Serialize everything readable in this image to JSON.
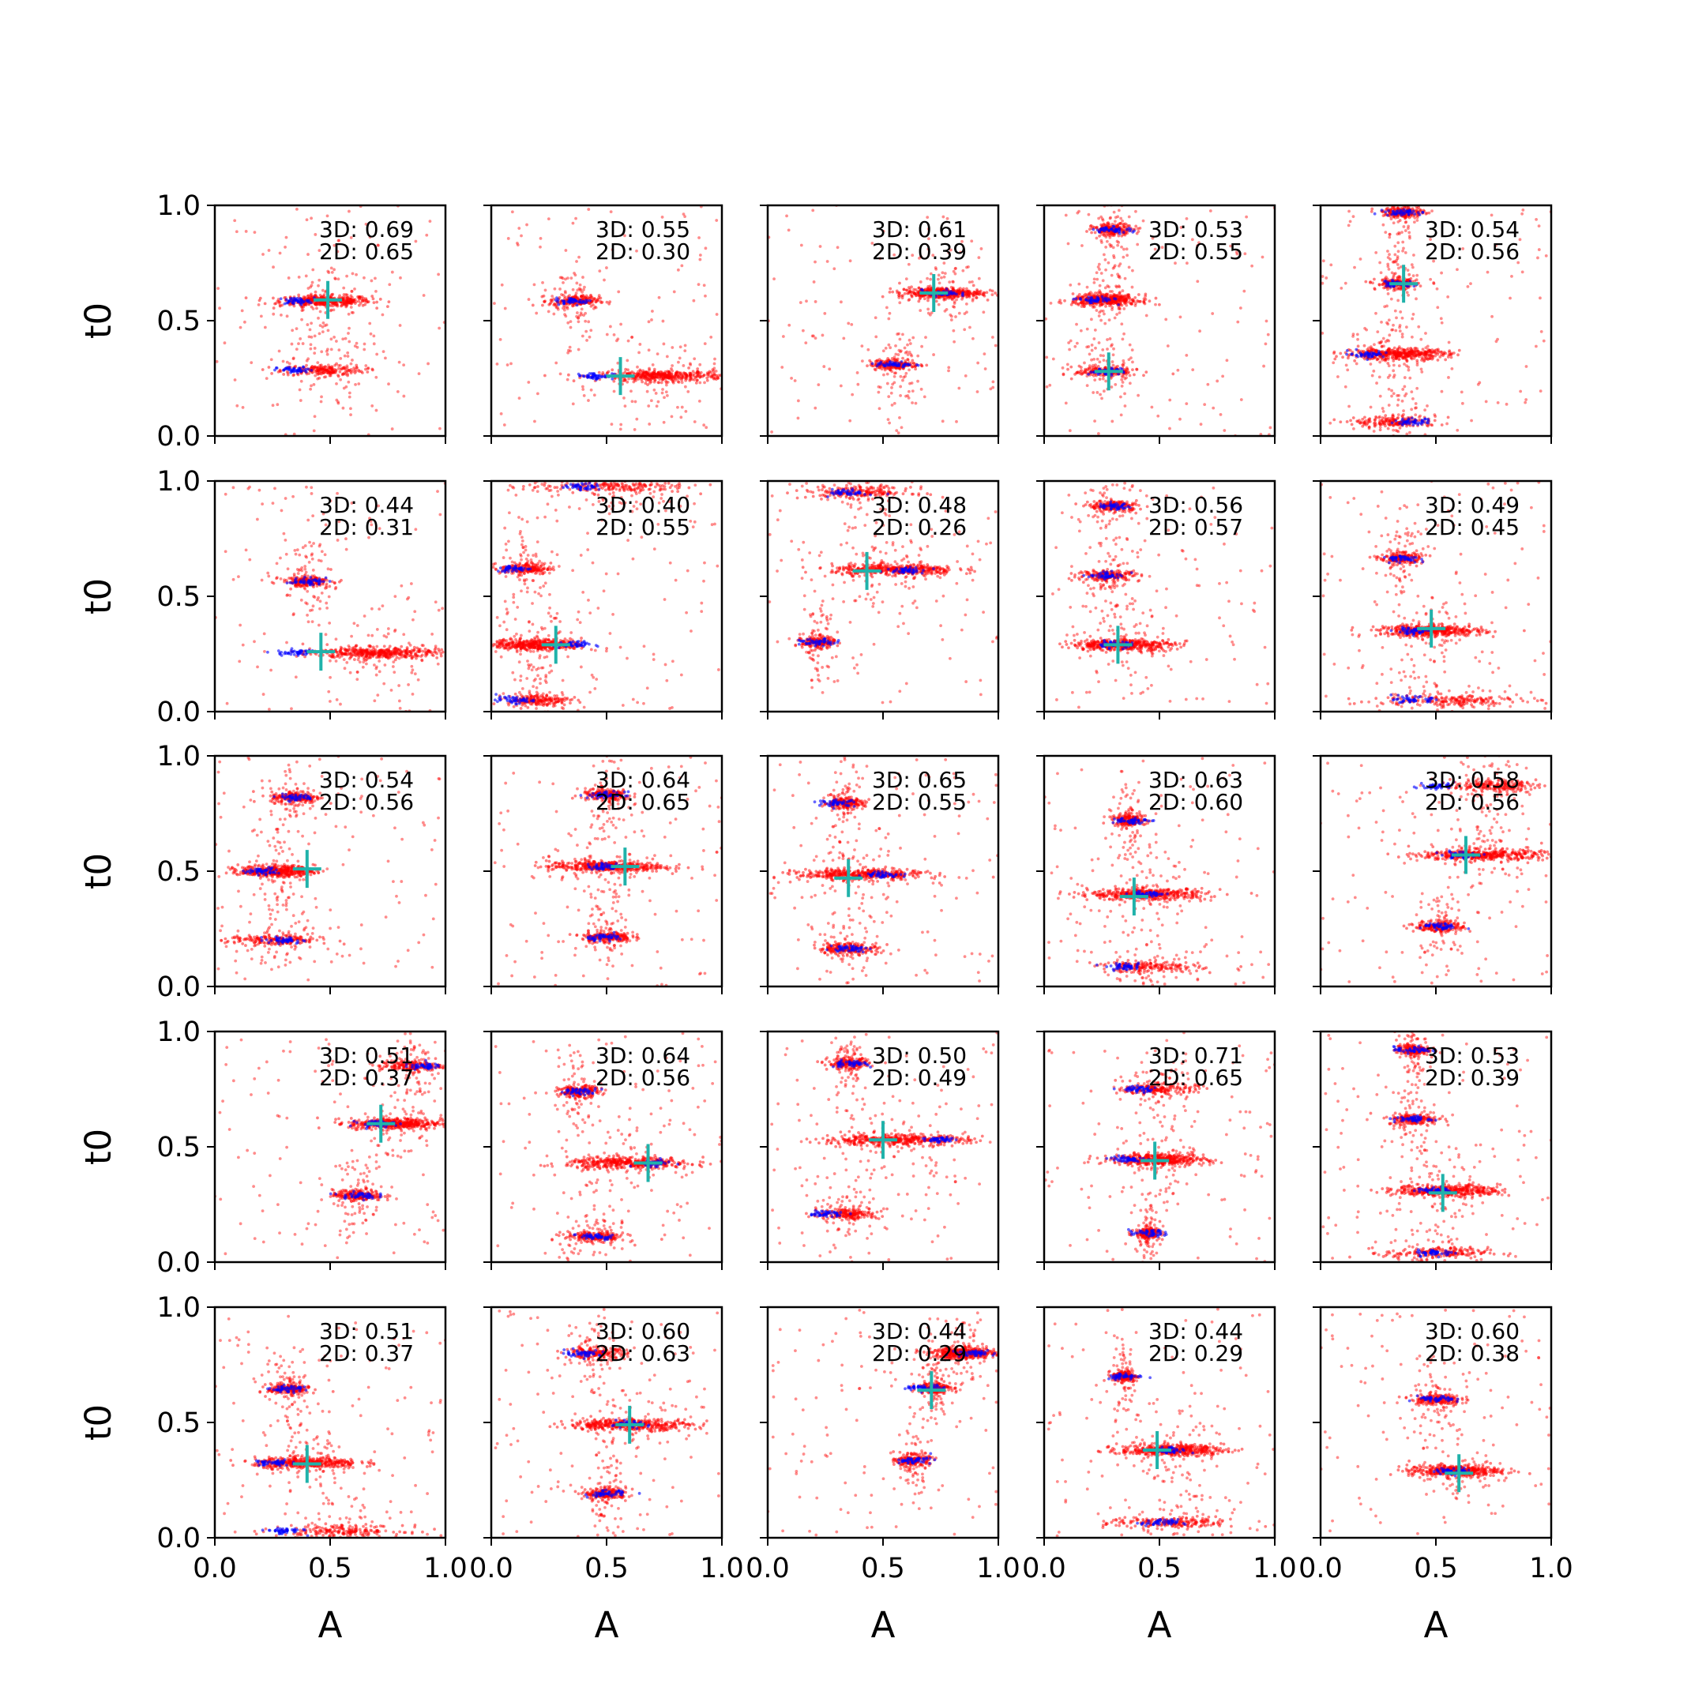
{
  "chart_data": {
    "type": "scatter",
    "layout": {
      "rows": 5,
      "cols": 5
    },
    "xlabel": "A",
    "ylabel": "t0",
    "xlim": [
      0,
      1
    ],
    "ylim": [
      0,
      1
    ],
    "xticks": [
      "0.0",
      "0.5",
      "1.0"
    ],
    "yticks": [
      "0.0",
      "0.5",
      "1.0"
    ],
    "grid": false,
    "colors": {
      "bulk_samples": "#ff0000",
      "mode_samples": "#0000ff",
      "true_marker": "#20b2aa",
      "axes": "#000000"
    },
    "panels": [
      {
        "score_3d": "3D: 0.69",
        "score_2d": "2D: 0.65",
        "truth": [
          0.49,
          0.59
        ],
        "bands": [
          {
            "x": 0.48,
            "y": 0.585,
            "w": 0.22,
            "mode_x": 0.35
          },
          {
            "x": 0.47,
            "y": 0.285,
            "w": 0.2,
            "mode_x": 0.35
          }
        ]
      },
      {
        "score_3d": "3D: 0.55",
        "score_2d": "2D: 0.30",
        "truth": [
          0.56,
          0.26
        ],
        "bands": [
          {
            "x": 0.74,
            "y": 0.26,
            "w": 0.3,
            "mode_x": 0.45
          },
          {
            "x": 0.36,
            "y": 0.585,
            "w": 0.12,
            "mode_x": 0.36
          }
        ]
      },
      {
        "score_3d": "3D: 0.61",
        "score_2d": "2D: 0.39",
        "truth": [
          0.72,
          0.62
        ],
        "bands": [
          {
            "x": 0.75,
            "y": 0.62,
            "w": 0.2,
            "mode_x": 0.75
          },
          {
            "x": 0.55,
            "y": 0.31,
            "w": 0.12,
            "mode_x": 0.55
          }
        ]
      },
      {
        "score_3d": "3D: 0.53",
        "score_2d": "2D: 0.55",
        "truth": [
          0.28,
          0.28
        ],
        "bands": [
          {
            "x": 0.27,
            "y": 0.59,
            "w": 0.16,
            "mode_x": 0.22
          },
          {
            "x": 0.27,
            "y": 0.28,
            "w": 0.15,
            "mode_x": 0.27
          },
          {
            "x": 0.3,
            "y": 0.895,
            "w": 0.1,
            "mode_x": 0.3
          }
        ]
      },
      {
        "score_3d": "3D: 0.54",
        "score_2d": "2D: 0.56",
        "truth": [
          0.36,
          0.66
        ],
        "bands": [
          {
            "x": 0.33,
            "y": 0.355,
            "w": 0.25,
            "mode_x": 0.2
          },
          {
            "x": 0.33,
            "y": 0.06,
            "w": 0.2,
            "mode_x": 0.4
          },
          {
            "x": 0.33,
            "y": 0.66,
            "w": 0.1,
            "mode_x": 0.33
          },
          {
            "x": 0.36,
            "y": 0.97,
            "w": 0.1,
            "mode_x": 0.36
          }
        ]
      },
      {
        "score_3d": "3D: 0.44",
        "score_2d": "2D: 0.31",
        "truth": [
          0.46,
          0.26
        ],
        "bands": [
          {
            "x": 0.7,
            "y": 0.255,
            "w": 0.3,
            "mode_x": 0.35
          },
          {
            "x": 0.4,
            "y": 0.565,
            "w": 0.12,
            "mode_x": 0.4
          }
        ]
      },
      {
        "score_3d": "3D: 0.40",
        "score_2d": "2D: 0.55",
        "truth": [
          0.28,
          0.29
        ],
        "bands": [
          {
            "x": 0.2,
            "y": 0.29,
            "w": 0.22,
            "mode_x": 0.35
          },
          {
            "x": 0.15,
            "y": 0.62,
            "w": 0.12,
            "mode_x": 0.1
          },
          {
            "x": 0.2,
            "y": 0.05,
            "w": 0.15,
            "mode_x": 0.1
          },
          {
            "x": 0.5,
            "y": 0.975,
            "w": 0.4,
            "mode_x": 0.4
          }
        ]
      },
      {
        "score_3d": "3D: 0.48",
        "score_2d": "2D: 0.26",
        "truth": [
          0.43,
          0.61
        ],
        "bands": [
          {
            "x": 0.55,
            "y": 0.615,
            "w": 0.3,
            "mode_x": 0.6
          },
          {
            "x": 0.4,
            "y": 0.95,
            "w": 0.25,
            "mode_x": 0.35
          },
          {
            "x": 0.22,
            "y": 0.3,
            "w": 0.08,
            "mode_x": 0.22
          }
        ]
      },
      {
        "score_3d": "3D: 0.56",
        "score_2d": "2D: 0.57",
        "truth": [
          0.32,
          0.29
        ],
        "bands": [
          {
            "x": 0.34,
            "y": 0.29,
            "w": 0.25,
            "mode_x": 0.3
          },
          {
            "x": 0.28,
            "y": 0.59,
            "w": 0.15,
            "mode_x": 0.28
          },
          {
            "x": 0.3,
            "y": 0.89,
            "w": 0.12,
            "mode_x": 0.3
          }
        ]
      },
      {
        "score_3d": "3D: 0.49",
        "score_2d": "2D: 0.45",
        "truth": [
          0.48,
          0.36
        ],
        "bands": [
          {
            "x": 0.48,
            "y": 0.35,
            "w": 0.25,
            "mode_x": 0.4
          },
          {
            "x": 0.55,
            "y": 0.05,
            "w": 0.35,
            "mode_x": 0.4
          },
          {
            "x": 0.35,
            "y": 0.665,
            "w": 0.1,
            "mode_x": 0.35
          }
        ]
      },
      {
        "score_3d": "3D: 0.54",
        "score_2d": "2D: 0.56",
        "truth": [
          0.4,
          0.51
        ],
        "bands": [
          {
            "x": 0.27,
            "y": 0.5,
            "w": 0.18,
            "mode_x": 0.2
          },
          {
            "x": 0.26,
            "y": 0.2,
            "w": 0.22,
            "mode_x": 0.3
          },
          {
            "x": 0.35,
            "y": 0.82,
            "w": 0.12,
            "mode_x": 0.35
          }
        ]
      },
      {
        "score_3d": "3D: 0.64",
        "score_2d": "2D: 0.65",
        "truth": [
          0.58,
          0.52
        ],
        "bands": [
          {
            "x": 0.5,
            "y": 0.52,
            "w": 0.28,
            "mode_x": 0.5
          },
          {
            "x": 0.5,
            "y": 0.215,
            "w": 0.12,
            "mode_x": 0.5
          },
          {
            "x": 0.5,
            "y": 0.83,
            "w": 0.12,
            "mode_x": 0.5
          }
        ]
      },
      {
        "score_3d": "3D: 0.65",
        "score_2d": "2D: 0.55",
        "truth": [
          0.35,
          0.47
        ],
        "bands": [
          {
            "x": 0.4,
            "y": 0.485,
            "w": 0.3,
            "mode_x": 0.5
          },
          {
            "x": 0.35,
            "y": 0.165,
            "w": 0.15,
            "mode_x": 0.35
          },
          {
            "x": 0.33,
            "y": 0.795,
            "w": 0.1,
            "mode_x": 0.3
          }
        ]
      },
      {
        "score_3d": "3D: 0.63",
        "score_2d": "2D: 0.60",
        "truth": [
          0.39,
          0.39
        ],
        "bands": [
          {
            "x": 0.45,
            "y": 0.4,
            "w": 0.28,
            "mode_x": 0.45
          },
          {
            "x": 0.45,
            "y": 0.085,
            "w": 0.25,
            "mode_x": 0.35
          },
          {
            "x": 0.37,
            "y": 0.72,
            "w": 0.08,
            "mode_x": 0.37
          }
        ]
      },
      {
        "score_3d": "3D: 0.58",
        "score_2d": "2D: 0.56",
        "truth": [
          0.63,
          0.57
        ],
        "bands": [
          {
            "x": 0.7,
            "y": 0.57,
            "w": 0.3,
            "mode_x": 0.6
          },
          {
            "x": 0.75,
            "y": 0.87,
            "w": 0.2,
            "mode_x": 0.5
          },
          {
            "x": 0.52,
            "y": 0.26,
            "w": 0.12,
            "mode_x": 0.52
          }
        ]
      },
      {
        "score_3d": "3D: 0.51",
        "score_2d": "2D: 0.37",
        "truth": [
          0.72,
          0.6
        ],
        "bands": [
          {
            "x": 0.78,
            "y": 0.6,
            "w": 0.22,
            "mode_x": 0.7
          },
          {
            "x": 0.85,
            "y": 0.85,
            "w": 0.15,
            "mode_x": 0.9
          },
          {
            "x": 0.62,
            "y": 0.29,
            "w": 0.12,
            "mode_x": 0.62
          }
        ]
      },
      {
        "score_3d": "3D: 0.64",
        "score_2d": "2D: 0.56",
        "truth": [
          0.68,
          0.43
        ],
        "bands": [
          {
            "x": 0.6,
            "y": 0.43,
            "w": 0.3,
            "mode_x": 0.7
          },
          {
            "x": 0.45,
            "y": 0.11,
            "w": 0.15,
            "mode_x": 0.45
          },
          {
            "x": 0.38,
            "y": 0.74,
            "w": 0.1,
            "mode_x": 0.38
          }
        ]
      },
      {
        "score_3d": "3D: 0.50",
        "score_2d": "2D: 0.49",
        "truth": [
          0.5,
          0.53
        ],
        "bands": [
          {
            "x": 0.55,
            "y": 0.53,
            "w": 0.35,
            "mode_x": 0.75
          },
          {
            "x": 0.35,
            "y": 0.21,
            "w": 0.15,
            "mode_x": 0.25
          },
          {
            "x": 0.35,
            "y": 0.86,
            "w": 0.1,
            "mode_x": 0.35
          }
        ]
      },
      {
        "score_3d": "3D: 0.71",
        "score_2d": "2D: 0.65",
        "truth": [
          0.48,
          0.44
        ],
        "bands": [
          {
            "x": 0.5,
            "y": 0.445,
            "w": 0.22,
            "mode_x": 0.35
          },
          {
            "x": 0.5,
            "y": 0.75,
            "w": 0.18,
            "mode_x": 0.4
          },
          {
            "x": 0.45,
            "y": 0.125,
            "w": 0.06,
            "mode_x": 0.45
          }
        ]
      },
      {
        "score_3d": "3D: 0.53",
        "score_2d": "2D: 0.39",
        "truth": [
          0.53,
          0.3
        ],
        "bands": [
          {
            "x": 0.55,
            "y": 0.31,
            "w": 0.25,
            "mode_x": 0.5
          },
          {
            "x": 0.5,
            "y": 0.04,
            "w": 0.25,
            "mode_x": 0.5
          },
          {
            "x": 0.4,
            "y": 0.62,
            "w": 0.12,
            "mode_x": 0.4
          },
          {
            "x": 0.4,
            "y": 0.92,
            "w": 0.08,
            "mode_x": 0.4
          }
        ]
      },
      {
        "score_3d": "3D: 0.51",
        "score_2d": "2D: 0.37",
        "truth": [
          0.4,
          0.32
        ],
        "bands": [
          {
            "x": 0.4,
            "y": 0.325,
            "w": 0.25,
            "mode_x": 0.25
          },
          {
            "x": 0.55,
            "y": 0.03,
            "w": 0.3,
            "mode_x": 0.3
          },
          {
            "x": 0.32,
            "y": 0.645,
            "w": 0.1,
            "mode_x": 0.32
          }
        ]
      },
      {
        "score_3d": "3D: 0.60",
        "score_2d": "2D: 0.63",
        "truth": [
          0.6,
          0.49
        ],
        "bands": [
          {
            "x": 0.6,
            "y": 0.49,
            "w": 0.3,
            "mode_x": 0.6
          },
          {
            "x": 0.45,
            "y": 0.8,
            "w": 0.15,
            "mode_x": 0.4
          },
          {
            "x": 0.5,
            "y": 0.19,
            "w": 0.1,
            "mode_x": 0.5
          }
        ]
      },
      {
        "score_3d": "3D: 0.44",
        "score_2d": "2D: 0.29",
        "truth": [
          0.71,
          0.64
        ],
        "bands": [
          {
            "x": 0.85,
            "y": 0.8,
            "w": 0.15,
            "mode_x": 0.9
          },
          {
            "x": 0.72,
            "y": 0.65,
            "w": 0.08,
            "mode_x": 0.68
          },
          {
            "x": 0.63,
            "y": 0.335,
            "w": 0.08,
            "mode_x": 0.63
          }
        ]
      },
      {
        "score_3d": "3D: 0.44",
        "score_2d": "2D: 0.29",
        "truth": [
          0.49,
          0.38
        ],
        "bands": [
          {
            "x": 0.55,
            "y": 0.38,
            "w": 0.25,
            "mode_x": 0.55
          },
          {
            "x": 0.55,
            "y": 0.065,
            "w": 0.3,
            "mode_x": 0.5
          },
          {
            "x": 0.35,
            "y": 0.7,
            "w": 0.06,
            "mode_x": 0.35
          }
        ]
      },
      {
        "score_3d": "3D: 0.60",
        "score_2d": "2D: 0.38",
        "truth": [
          0.6,
          0.28
        ],
        "bands": [
          {
            "x": 0.58,
            "y": 0.29,
            "w": 0.22,
            "mode_x": 0.58
          },
          {
            "x": 0.5,
            "y": 0.6,
            "w": 0.12,
            "mode_x": 0.5
          }
        ]
      }
    ]
  }
}
